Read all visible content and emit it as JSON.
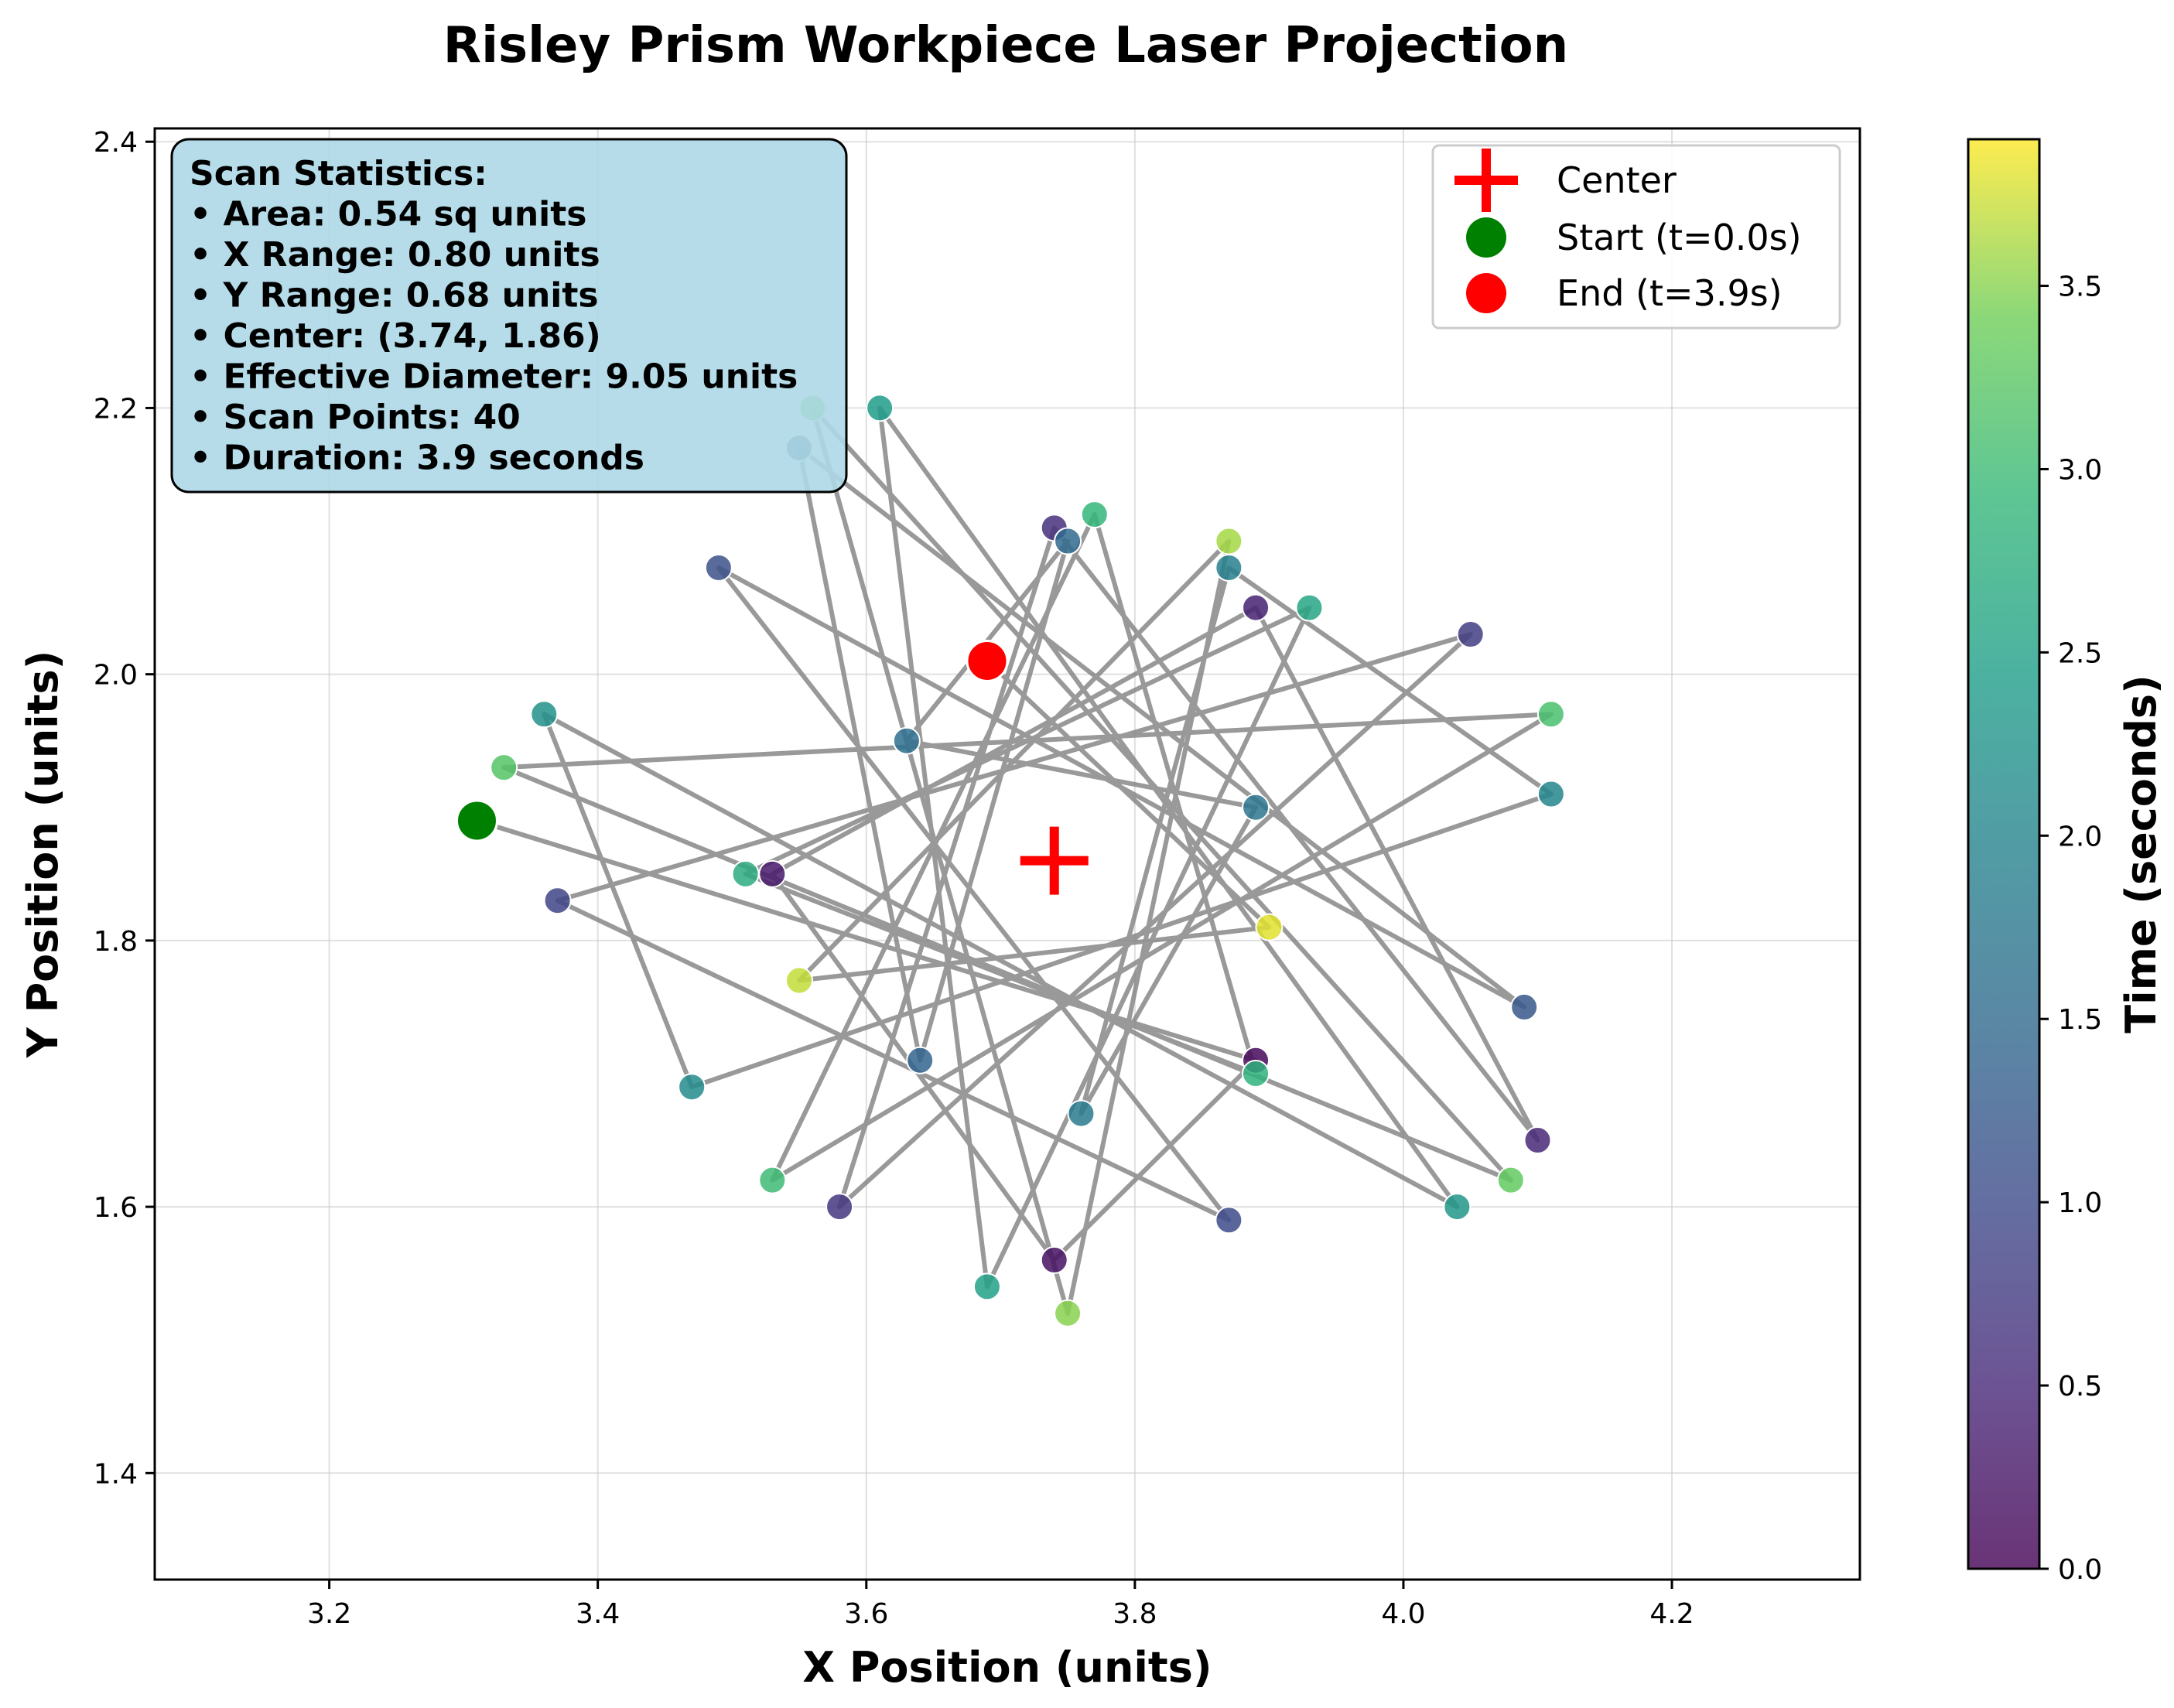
{
  "chart_data": {
    "type": "scatter",
    "title": "Risley Prism Workpiece Laser Projection",
    "xlabel": "X Position (units)",
    "ylabel": "Y Position (units)",
    "xlim": [
      3.07,
      4.34
    ],
    "ylim": [
      1.32,
      2.41
    ],
    "xticks": [
      "3.2",
      "3.4",
      "3.6",
      "3.8",
      "4.0",
      "4.2"
    ],
    "yticks": [
      "1.4",
      "1.6",
      "1.8",
      "2.0",
      "2.2",
      "2.4"
    ],
    "grid": true,
    "path_color": "#808080",
    "points": [
      [
        3.31,
        1.89,
        0.0
      ],
      [
        3.89,
        1.71,
        0.1
      ],
      [
        3.74,
        1.56,
        0.2
      ],
      [
        3.53,
        1.85,
        0.3
      ],
      [
        3.89,
        2.05,
        0.4
      ],
      [
        4.1,
        1.65,
        0.5
      ],
      [
        3.74,
        2.11,
        0.6
      ],
      [
        3.58,
        1.6,
        0.7
      ],
      [
        4.05,
        2.03,
        0.8
      ],
      [
        3.37,
        1.83,
        0.9
      ],
      [
        3.87,
        1.59,
        1.0
      ],
      [
        3.49,
        2.08,
        1.1
      ],
      [
        4.09,
        1.75,
        1.2
      ],
      [
        3.55,
        2.17,
        1.3
      ],
      [
        3.64,
        1.71,
        1.4
      ],
      [
        3.75,
        2.1,
        1.5
      ],
      [
        3.63,
        1.95,
        1.6
      ],
      [
        3.89,
        1.9,
        1.7
      ],
      [
        3.76,
        1.67,
        1.8
      ],
      [
        3.87,
        2.08,
        1.9
      ],
      [
        4.11,
        1.91,
        2.0
      ],
      [
        3.47,
        1.69,
        2.1
      ],
      [
        3.36,
        1.97,
        2.2
      ],
      [
        4.04,
        1.6,
        2.3
      ],
      [
        3.61,
        2.2,
        2.4
      ],
      [
        3.69,
        1.54,
        2.5
      ],
      [
        3.93,
        2.05,
        2.6
      ],
      [
        3.51,
        1.85,
        2.7
      ],
      [
        3.89,
        1.7,
        2.8
      ],
      [
        3.77,
        2.12,
        2.9
      ],
      [
        3.53,
        1.62,
        3.0
      ],
      [
        4.11,
        1.97,
        3.1
      ],
      [
        3.33,
        1.93,
        3.2
      ],
      [
        4.08,
        1.62,
        3.3
      ],
      [
        3.56,
        2.2,
        3.4
      ],
      [
        3.75,
        1.52,
        3.5
      ],
      [
        3.87,
        2.1,
        3.6
      ],
      [
        3.55,
        1.77,
        3.7
      ],
      [
        3.9,
        1.81,
        3.8
      ],
      [
        3.69,
        2.01,
        3.9
      ]
    ],
    "center": {
      "x": 3.74,
      "y": 1.86,
      "color": "#ff0000"
    },
    "start_color": "#008000",
    "end_color": "#ff0000",
    "legend": {
      "position": "top-right",
      "entries": [
        "Center",
        "Start (t=0.0s)",
        "End (t=3.9s)"
      ]
    },
    "colorbar": {
      "label": "Time (seconds)",
      "colormap": "viridis",
      "range": [
        0.0,
        3.9
      ],
      "ticks": [
        "0.0",
        "0.5",
        "1.0",
        "1.5",
        "2.0",
        "2.5",
        "3.0",
        "3.5"
      ]
    },
    "stats_box": {
      "lines": [
        "Scan Statistics:",
        "• Area: 0.54 sq units",
        "• X Range: 0.80 units",
        "• Y Range: 0.68 units",
        "• Center: (3.74, 1.86)",
        "• Effective Diameter: 9.05 units",
        "• Scan Points: 40",
        "• Duration: 3.9 seconds"
      ],
      "background": "#add8e6"
    }
  }
}
